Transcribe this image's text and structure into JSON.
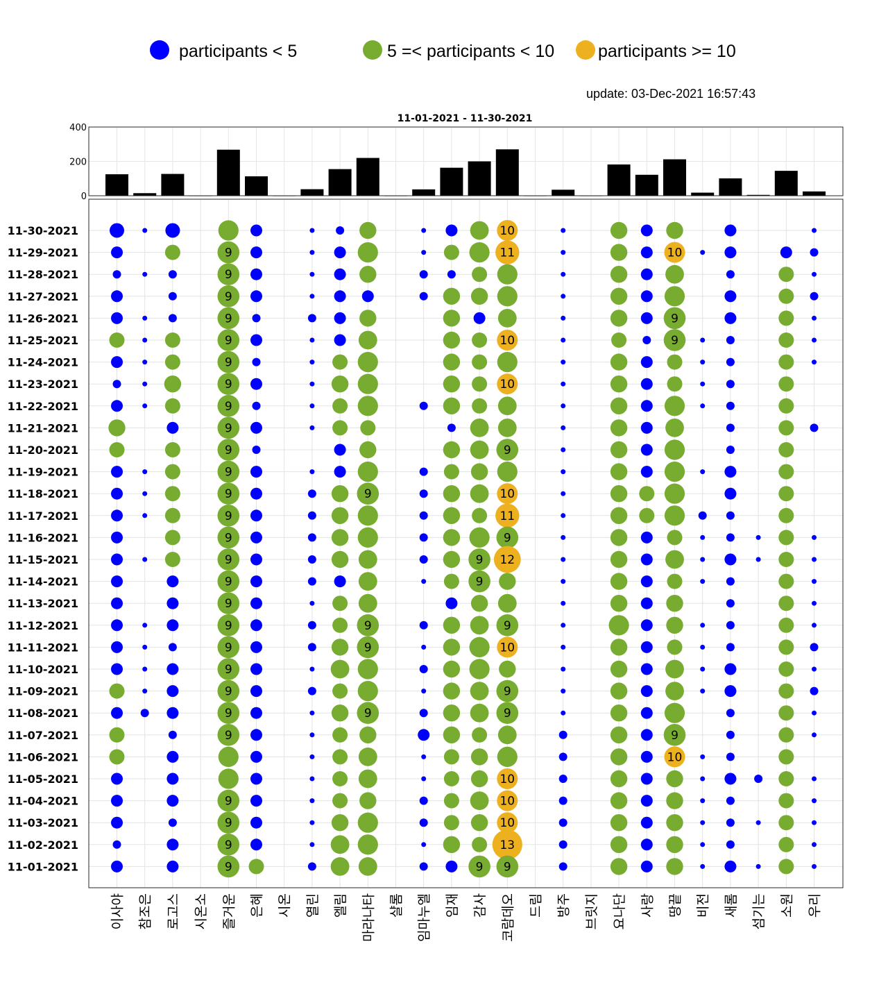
{
  "legend": {
    "items": [
      {
        "label": "participants < 5",
        "color": "#0000FF"
      },
      {
        "label": "5 =< participants < 10",
        "color": "#77AC30"
      },
      {
        "label": "participants >= 10",
        "color": "#EDB120"
      }
    ]
  },
  "update_text": "update: 03-Dec-2021 16:57:43",
  "chart_data": [
    {
      "type": "bar",
      "title": "11-01-2021   - 11-30-2021",
      "categories": [
        "이사야",
        "참조은",
        "로고스",
        "시온소",
        "즐거운",
        "은혜",
        "시온",
        "열린",
        "엘림",
        "마라나타",
        "샬롬",
        "임마누엘",
        "임재",
        "감사",
        "코람데오",
        "드림",
        "방주",
        "브릿지",
        "요나단",
        "사랑",
        "땅끝",
        "비전",
        "새롬",
        "섬기는",
        "소원",
        "우리"
      ],
      "values": [
        125,
        15,
        127,
        0,
        268,
        113,
        0,
        38,
        155,
        220,
        0,
        37,
        163,
        200,
        270,
        0,
        35,
        0,
        182,
        122,
        212,
        18,
        101,
        5,
        145,
        25
      ],
      "ylim": [
        0,
        400
      ],
      "yticks": [
        "0",
        "200",
        "400"
      ],
      "grid": true
    },
    {
      "type": "scatter",
      "title": "",
      "x_categories": [
        "이사야",
        "참조은",
        "로고스",
        "시온소",
        "즐거운",
        "은혜",
        "시온",
        "열린",
        "엘림",
        "마라나타",
        "샬롬",
        "임마누엘",
        "임재",
        "감사",
        "코람데오",
        "드림",
        "방주",
        "브릿지",
        "요나단",
        "사랑",
        "땅끝",
        "비전",
        "새롬",
        "섬기는",
        "소원",
        "우리"
      ],
      "y_categories": [
        "11-30-2021",
        "11-29-2021",
        "11-28-2021",
        "11-27-2021",
        "11-26-2021",
        "11-25-2021",
        "11-24-2021",
        "11-23-2021",
        "11-22-2021",
        "11-21-2021",
        "11-20-2021",
        "11-19-2021",
        "11-18-2021",
        "11-17-2021",
        "11-16-2021",
        "11-15-2021",
        "11-14-2021",
        "11-13-2021",
        "11-12-2021",
        "11-11-2021",
        "11-10-2021",
        "11-09-2021",
        "11-08-2021",
        "11-07-2021",
        "11-06-2021",
        "11-05-2021",
        "11-04-2021",
        "11-03-2021",
        "11-02-2021",
        "11-01-2021"
      ],
      "participants": [
        [
          4,
          1,
          4,
          0,
          8,
          3,
          0,
          1,
          2,
          6,
          0,
          1,
          3,
          7,
          10,
          0,
          1,
          0,
          6,
          3,
          6,
          0,
          3,
          0,
          0,
          1
        ],
        [
          3,
          0,
          5,
          0,
          9,
          3,
          0,
          1,
          3,
          8,
          0,
          1,
          5,
          8,
          11,
          0,
          1,
          0,
          6,
          3,
          10,
          1,
          3,
          0,
          3,
          2
        ],
        [
          2,
          1,
          2,
          0,
          9,
          3,
          0,
          1,
          3,
          6,
          0,
          2,
          2,
          5,
          8,
          0,
          1,
          0,
          6,
          3,
          7,
          0,
          2,
          0,
          5,
          1
        ],
        [
          3,
          0,
          2,
          0,
          9,
          3,
          0,
          1,
          3,
          3,
          0,
          2,
          6,
          6,
          8,
          0,
          1,
          0,
          6,
          3,
          8,
          0,
          3,
          0,
          5,
          2
        ],
        [
          3,
          1,
          2,
          0,
          9,
          2,
          0,
          2,
          3,
          6,
          0,
          0,
          6,
          3,
          7,
          0,
          1,
          0,
          6,
          3,
          9,
          0,
          3,
          0,
          5,
          1
        ],
        [
          5,
          1,
          5,
          0,
          9,
          3,
          0,
          1,
          3,
          7,
          0,
          0,
          6,
          5,
          10,
          0,
          1,
          0,
          5,
          2,
          9,
          1,
          2,
          0,
          5,
          1
        ],
        [
          3,
          1,
          5,
          0,
          9,
          2,
          0,
          1,
          5,
          8,
          0,
          0,
          6,
          5,
          8,
          0,
          1,
          0,
          6,
          3,
          5,
          1,
          2,
          0,
          5,
          1
        ],
        [
          2,
          1,
          6,
          0,
          9,
          3,
          0,
          1,
          6,
          8,
          0,
          0,
          6,
          5,
          10,
          0,
          1,
          0,
          6,
          3,
          5,
          1,
          2,
          0,
          5,
          0
        ],
        [
          3,
          1,
          5,
          0,
          9,
          2,
          0,
          1,
          5,
          8,
          0,
          2,
          6,
          5,
          7,
          0,
          1,
          0,
          6,
          3,
          8,
          1,
          2,
          0,
          5,
          0
        ],
        [
          6,
          0,
          3,
          0,
          9,
          3,
          0,
          1,
          5,
          5,
          0,
          0,
          2,
          7,
          7,
          0,
          1,
          0,
          6,
          3,
          7,
          0,
          2,
          0,
          5,
          2
        ],
        [
          5,
          0,
          5,
          0,
          9,
          2,
          0,
          0,
          3,
          6,
          0,
          0,
          6,
          7,
          9,
          0,
          1,
          0,
          6,
          3,
          8,
          0,
          2,
          0,
          5,
          0
        ],
        [
          3,
          1,
          5,
          0,
          9,
          3,
          0,
          1,
          3,
          8,
          0,
          2,
          5,
          6,
          8,
          0,
          1,
          0,
          6,
          3,
          8,
          1,
          3,
          0,
          5,
          0
        ],
        [
          3,
          1,
          5,
          0,
          9,
          3,
          0,
          2,
          6,
          9,
          0,
          2,
          6,
          7,
          10,
          0,
          1,
          0,
          6,
          5,
          8,
          0,
          3,
          0,
          5,
          0
        ],
        [
          3,
          1,
          5,
          0,
          9,
          3,
          0,
          2,
          6,
          8,
          0,
          2,
          6,
          5,
          11,
          0,
          1,
          0,
          6,
          5,
          8,
          2,
          2,
          0,
          5,
          0
        ],
        [
          3,
          0,
          5,
          0,
          9,
          3,
          0,
          2,
          6,
          8,
          0,
          2,
          6,
          8,
          9,
          0,
          1,
          0,
          6,
          3,
          5,
          1,
          2,
          1,
          5,
          1
        ],
        [
          3,
          1,
          5,
          0,
          9,
          3,
          0,
          2,
          6,
          7,
          0,
          2,
          6,
          9,
          12,
          0,
          1,
          0,
          6,
          3,
          7,
          1,
          3,
          1,
          5,
          1
        ],
        [
          3,
          0,
          3,
          0,
          9,
          3,
          0,
          2,
          3,
          7,
          0,
          1,
          5,
          9,
          6,
          0,
          1,
          0,
          6,
          3,
          5,
          1,
          2,
          0,
          5,
          1
        ],
        [
          3,
          0,
          3,
          0,
          9,
          3,
          0,
          1,
          5,
          7,
          0,
          0,
          3,
          6,
          7,
          0,
          1,
          0,
          6,
          3,
          6,
          0,
          2,
          0,
          5,
          1
        ],
        [
          3,
          1,
          3,
          0,
          9,
          3,
          0,
          2,
          5,
          9,
          0,
          2,
          6,
          7,
          9,
          0,
          1,
          0,
          8,
          3,
          6,
          1,
          2,
          0,
          5,
          1
        ],
        [
          3,
          1,
          2,
          0,
          9,
          3,
          0,
          2,
          6,
          9,
          0,
          1,
          6,
          8,
          10,
          0,
          1,
          0,
          6,
          3,
          5,
          1,
          2,
          0,
          5,
          2
        ],
        [
          3,
          1,
          3,
          0,
          9,
          3,
          0,
          1,
          7,
          8,
          0,
          2,
          6,
          8,
          6,
          0,
          1,
          0,
          6,
          3,
          7,
          1,
          3,
          0,
          5,
          1
        ],
        [
          5,
          1,
          3,
          0,
          9,
          3,
          0,
          2,
          5,
          8,
          0,
          1,
          6,
          7,
          9,
          0,
          1,
          0,
          6,
          3,
          7,
          1,
          3,
          0,
          5,
          2
        ],
        [
          3,
          2,
          3,
          0,
          9,
          3,
          0,
          1,
          6,
          9,
          0,
          2,
          6,
          7,
          9,
          0,
          1,
          0,
          6,
          3,
          8,
          0,
          2,
          0,
          5,
          1
        ],
        [
          5,
          0,
          2,
          0,
          9,
          3,
          0,
          1,
          5,
          6,
          0,
          3,
          6,
          5,
          7,
          0,
          2,
          0,
          6,
          3,
          9,
          0,
          2,
          0,
          5,
          1
        ],
        [
          5,
          0,
          3,
          0,
          8,
          3,
          0,
          1,
          5,
          7,
          0,
          1,
          5,
          6,
          8,
          0,
          2,
          0,
          6,
          3,
          10,
          1,
          2,
          0,
          5,
          0
        ],
        [
          3,
          0,
          3,
          0,
          8,
          3,
          0,
          1,
          5,
          7,
          0,
          1,
          5,
          6,
          10,
          0,
          2,
          0,
          6,
          3,
          6,
          1,
          3,
          2,
          5,
          1
        ],
        [
          3,
          0,
          3,
          0,
          9,
          3,
          0,
          1,
          5,
          6,
          0,
          2,
          5,
          7,
          10,
          0,
          2,
          0,
          6,
          3,
          6,
          1,
          2,
          0,
          5,
          1
        ],
        [
          3,
          0,
          2,
          0,
          9,
          3,
          0,
          1,
          6,
          8,
          0,
          2,
          5,
          6,
          10,
          0,
          2,
          0,
          6,
          3,
          6,
          1,
          2,
          1,
          5,
          1
        ],
        [
          2,
          0,
          3,
          0,
          9,
          3,
          0,
          1,
          7,
          8,
          0,
          1,
          6,
          5,
          13,
          0,
          2,
          0,
          6,
          3,
          6,
          1,
          2,
          0,
          5,
          1
        ],
        [
          3,
          0,
          3,
          0,
          9,
          5,
          0,
          2,
          7,
          7,
          0,
          2,
          3,
          9,
          9,
          0,
          2,
          0,
          6,
          3,
          6,
          1,
          3,
          1,
          5,
          1
        ]
      ],
      "labels_shown_from": 9,
      "grid": true
    }
  ]
}
